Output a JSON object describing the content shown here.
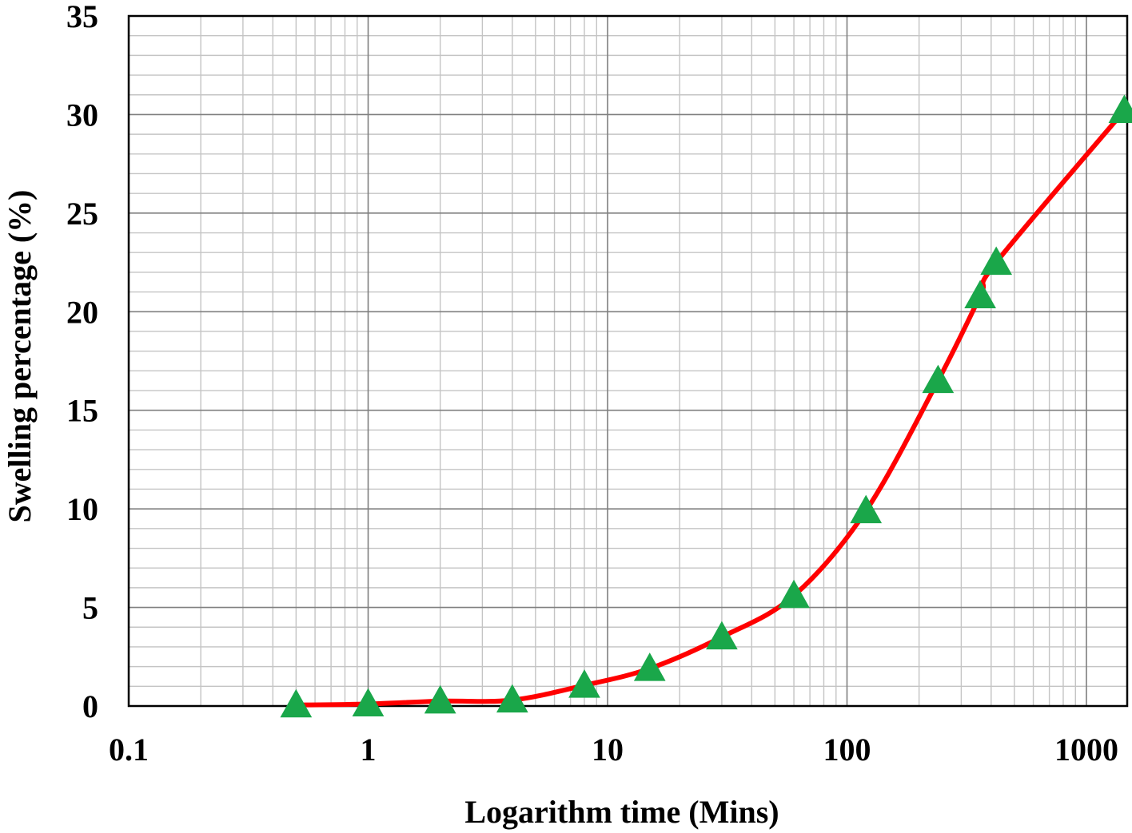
{
  "chart_data": {
    "type": "line",
    "xlabel": "Logarithm time (Mins)",
    "ylabel": "Swelling percentage  (%)",
    "x_scale": "log",
    "xlim": [
      0.1,
      1440
    ],
    "ylim": [
      0,
      35
    ],
    "x_ticks": [
      0.1,
      1,
      10,
      100,
      1000
    ],
    "x_tick_labels": [
      "0.1",
      "1",
      "10",
      "100",
      "1000"
    ],
    "y_ticks": [
      0,
      5,
      10,
      15,
      20,
      25,
      30,
      35
    ],
    "y_tick_labels": [
      "0",
      "5",
      "10",
      "15",
      "20",
      "25",
      "30",
      "35"
    ],
    "grid": true,
    "legend": "none",
    "series": [
      {
        "line_color": "#ff0000",
        "marker": "triangle",
        "marker_color": "#1aa74a",
        "points": [
          {
            "x": 0.5,
            "y": 0.05
          },
          {
            "x": 1,
            "y": 0.1
          },
          {
            "x": 2,
            "y": 0.25
          },
          {
            "x": 4,
            "y": 0.3
          },
          {
            "x": 8,
            "y": 1.05
          },
          {
            "x": 15,
            "y": 1.9
          },
          {
            "x": 30,
            "y": 3.5
          },
          {
            "x": 60,
            "y": 5.6
          },
          {
            "x": 120,
            "y": 9.9
          },
          {
            "x": 240,
            "y": 16.5
          },
          {
            "x": 360,
            "y": 20.8
          },
          {
            "x": 420,
            "y": 22.5
          },
          {
            "x": 1440,
            "y": 30.2
          }
        ]
      }
    ]
  }
}
